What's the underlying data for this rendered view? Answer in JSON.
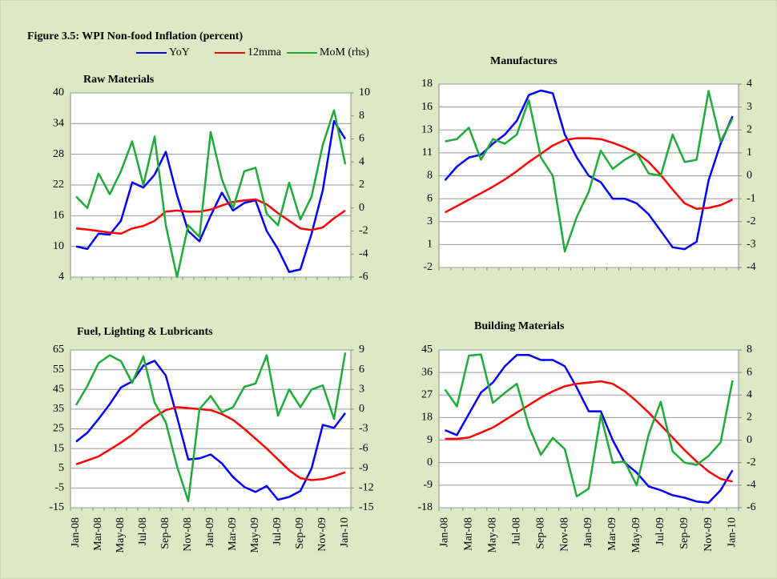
{
  "title": "Figure 3.5: WPI Non-food Inflation (percent)",
  "chart_data": [
    {
      "type": "line",
      "title": "Raw Materials",
      "ylim": [
        4,
        40
      ],
      "yticks": [
        4,
        10,
        16,
        22,
        28,
        34,
        40
      ],
      "y2lim": [
        -6,
        10
      ],
      "y2ticks": [
        -6,
        -4,
        -2,
        0,
        2,
        4,
        6,
        8,
        10
      ],
      "grid": true,
      "series": [
        {
          "name": "YoY",
          "color": "#0000ff",
          "values": [
            10,
            9.5,
            12.5,
            12.3,
            15,
            22.5,
            21.5,
            24,
            28.5,
            20,
            13,
            11,
            16,
            20.5,
            17,
            18.5,
            19,
            13,
            9.5,
            5,
            5.5,
            12.5,
            21,
            34.5,
            31
          ]
        },
        {
          "name": "12mma",
          "color": "#ff0000",
          "values": [
            13.5,
            13.3,
            13,
            12.7,
            12.5,
            13.5,
            14,
            15,
            16.8,
            17,
            16.8,
            16.8,
            17.2,
            18,
            18.7,
            19,
            19.2,
            18.2,
            16.5,
            15,
            13.5,
            13.2,
            13.7,
            15.5,
            17
          ]
        },
        {
          "name": "MoM (rhs)",
          "color": "#1faa3a",
          "axis": "y2",
          "values": [
            1,
            0,
            3,
            1.2,
            3.2,
            5.8,
            2,
            6.2,
            -1.5,
            -6,
            -1.5,
            -2.5,
            6.6,
            2.5,
            0,
            3.2,
            3.5,
            -0.5,
            -1.5,
            2.2,
            -1,
            1,
            5.5,
            8.5,
            3.8
          ]
        }
      ]
    },
    {
      "type": "line",
      "title": "Manufactures",
      "ylim": [
        -2,
        18
      ],
      "yticks": [
        -2,
        {
          "value": 0.5,
          "label": "1"
        },
        3,
        {
          "value": 5.5,
          "label": "6"
        },
        8,
        {
          "value": 10.5,
          "label": "11"
        },
        13,
        {
          "value": 15.5,
          "label": "16"
        },
        18
      ],
      "y2lim": [
        -4,
        4
      ],
      "y2ticks": [
        -4,
        -3,
        -2,
        -1,
        0,
        1,
        2,
        3,
        4
      ],
      "grid": true,
      "series": [
        {
          "name": "YoY",
          "color": "#0000ff",
          "values": [
            7.5,
            9,
            10,
            10.3,
            11.5,
            12.5,
            14,
            16.8,
            17.3,
            17,
            12.5,
            10,
            8,
            7.3,
            5.5,
            5.5,
            5,
            3.8,
            2,
            0.2,
            0,
            0.8,
            7.5,
            11.5,
            14.5
          ]
        },
        {
          "name": "12mma",
          "color": "#ff0000",
          "values": [
            4,
            4.7,
            5.4,
            6.1,
            6.8,
            7.6,
            8.5,
            9.5,
            10.4,
            11.3,
            11.9,
            12.1,
            12.1,
            12,
            11.6,
            11.1,
            10.5,
            9.5,
            8.1,
            6.5,
            5,
            4.4,
            4.5,
            4.8,
            5.4
          ]
        },
        {
          "name": "MoM (rhs)",
          "color": "#1faa3a",
          "axis": "y2",
          "values": [
            1.5,
            1.6,
            2.1,
            0.7,
            1.6,
            1.4,
            1.8,
            3.3,
            0.8,
            0,
            -3.3,
            -1.8,
            -0.7,
            1.1,
            0.3,
            0.7,
            1,
            0.1,
            0,
            1.8,
            0.6,
            0.7,
            3.7,
            1.5,
            2.5
          ]
        }
      ]
    },
    {
      "type": "line",
      "title": "Fuel, Lighting & Lubricants",
      "categories": [
        "Jan-08",
        null,
        "Mar-08",
        null,
        "May-08",
        null,
        "Jul-08",
        null,
        "Sep-08",
        null,
        "Nov-08",
        null,
        "Jan-09",
        null,
        "Mar-09",
        null,
        "May-09",
        null,
        "Jul-09",
        null,
        "Sep-09",
        null,
        "Nov-09",
        null,
        "Jan-10"
      ],
      "ylim": [
        -15,
        65
      ],
      "yticks": [
        -15,
        -5,
        5,
        15,
        25,
        35,
        45,
        55,
        65
      ],
      "y2lim": [
        -15,
        9
      ],
      "y2ticks": [
        -15,
        -12,
        -9,
        -6,
        -3,
        0,
        3,
        6,
        9
      ],
      "grid": true,
      "series": [
        {
          "name": "YoY",
          "color": "#0000ff",
          "values": [
            18.5,
            23,
            30,
            37.5,
            46,
            49,
            57,
            59.5,
            52,
            31,
            9.5,
            10,
            12,
            7.5,
            0.5,
            -4.5,
            -7,
            -4,
            -11,
            -9.5,
            -6.5,
            5,
            27,
            25.5,
            33
          ]
        },
        {
          "name": "12mma",
          "color": "#ff0000",
          "values": [
            7,
            9,
            11,
            14.5,
            18,
            22,
            27,
            31,
            34.5,
            36,
            35.5,
            35,
            34.5,
            32.5,
            29.5,
            25,
            20,
            15,
            9.5,
            4,
            0,
            -1,
            -0.5,
            1,
            3
          ]
        },
        {
          "name": "MoM (rhs)",
          "color": "#1faa3a",
          "axis": "y2",
          "values": [
            0.6,
            3.5,
            7,
            8.2,
            7.3,
            4,
            8,
            1,
            -2,
            -8.7,
            -14,
            0,
            2,
            -0.5,
            0.3,
            3.4,
            3.9,
            8.2,
            -1,
            3,
            0.3,
            3,
            3.6,
            -1.5,
            8.6
          ]
        }
      ]
    },
    {
      "type": "line",
      "title": "Building Materials",
      "categories": [
        "Jan-08",
        null,
        "Mar-08",
        null,
        "May-08",
        null,
        "Jul-08",
        null,
        "Sep-08",
        null,
        "Nov-08",
        null,
        "Jan-09",
        null,
        "Mar-09",
        null,
        "May-09",
        null,
        "Jul-09",
        null,
        "Sep-09",
        null,
        "Nov-09",
        null,
        "Jan-10"
      ],
      "ylim": [
        -18,
        45
      ],
      "yticks": [
        -18,
        -9,
        0,
        9,
        18,
        27,
        36,
        45
      ],
      "y2lim": [
        -6,
        8
      ],
      "y2ticks": [
        -6,
        -4,
        -2,
        0,
        2,
        4,
        6,
        8
      ],
      "grid": true,
      "series": [
        {
          "name": "YoY",
          "color": "#0000ff",
          "values": [
            13,
            11,
            19.5,
            28,
            32,
            38.5,
            43,
            43,
            41,
            41,
            38.5,
            30,
            20.5,
            20.5,
            9,
            0,
            -4,
            -9.5,
            -11,
            -13,
            -14,
            -15.5,
            -16,
            -11,
            -3
          ]
        },
        {
          "name": "12mma",
          "color": "#ff0000",
          "values": [
            9.5,
            9.5,
            10,
            12,
            14,
            17,
            20,
            23,
            26,
            28.5,
            30.5,
            31.5,
            32,
            32.5,
            31.5,
            28.5,
            24.5,
            20,
            15,
            10,
            5,
            0.5,
            -3.5,
            -6.5,
            -7.5
          ]
        },
        {
          "name": "MoM (rhs)",
          "color": "#1faa3a",
          "axis": "y2",
          "values": [
            4.5,
            3,
            7.5,
            7.6,
            3.3,
            4.2,
            5,
            1.2,
            -1.3,
            0.2,
            -0.8,
            -5,
            -4.3,
            2.2,
            -2,
            -1.9,
            -4,
            0.5,
            3.4,
            -1,
            -2,
            -2.2,
            -1.4,
            -0.2,
            5.3
          ]
        }
      ]
    }
  ]
}
